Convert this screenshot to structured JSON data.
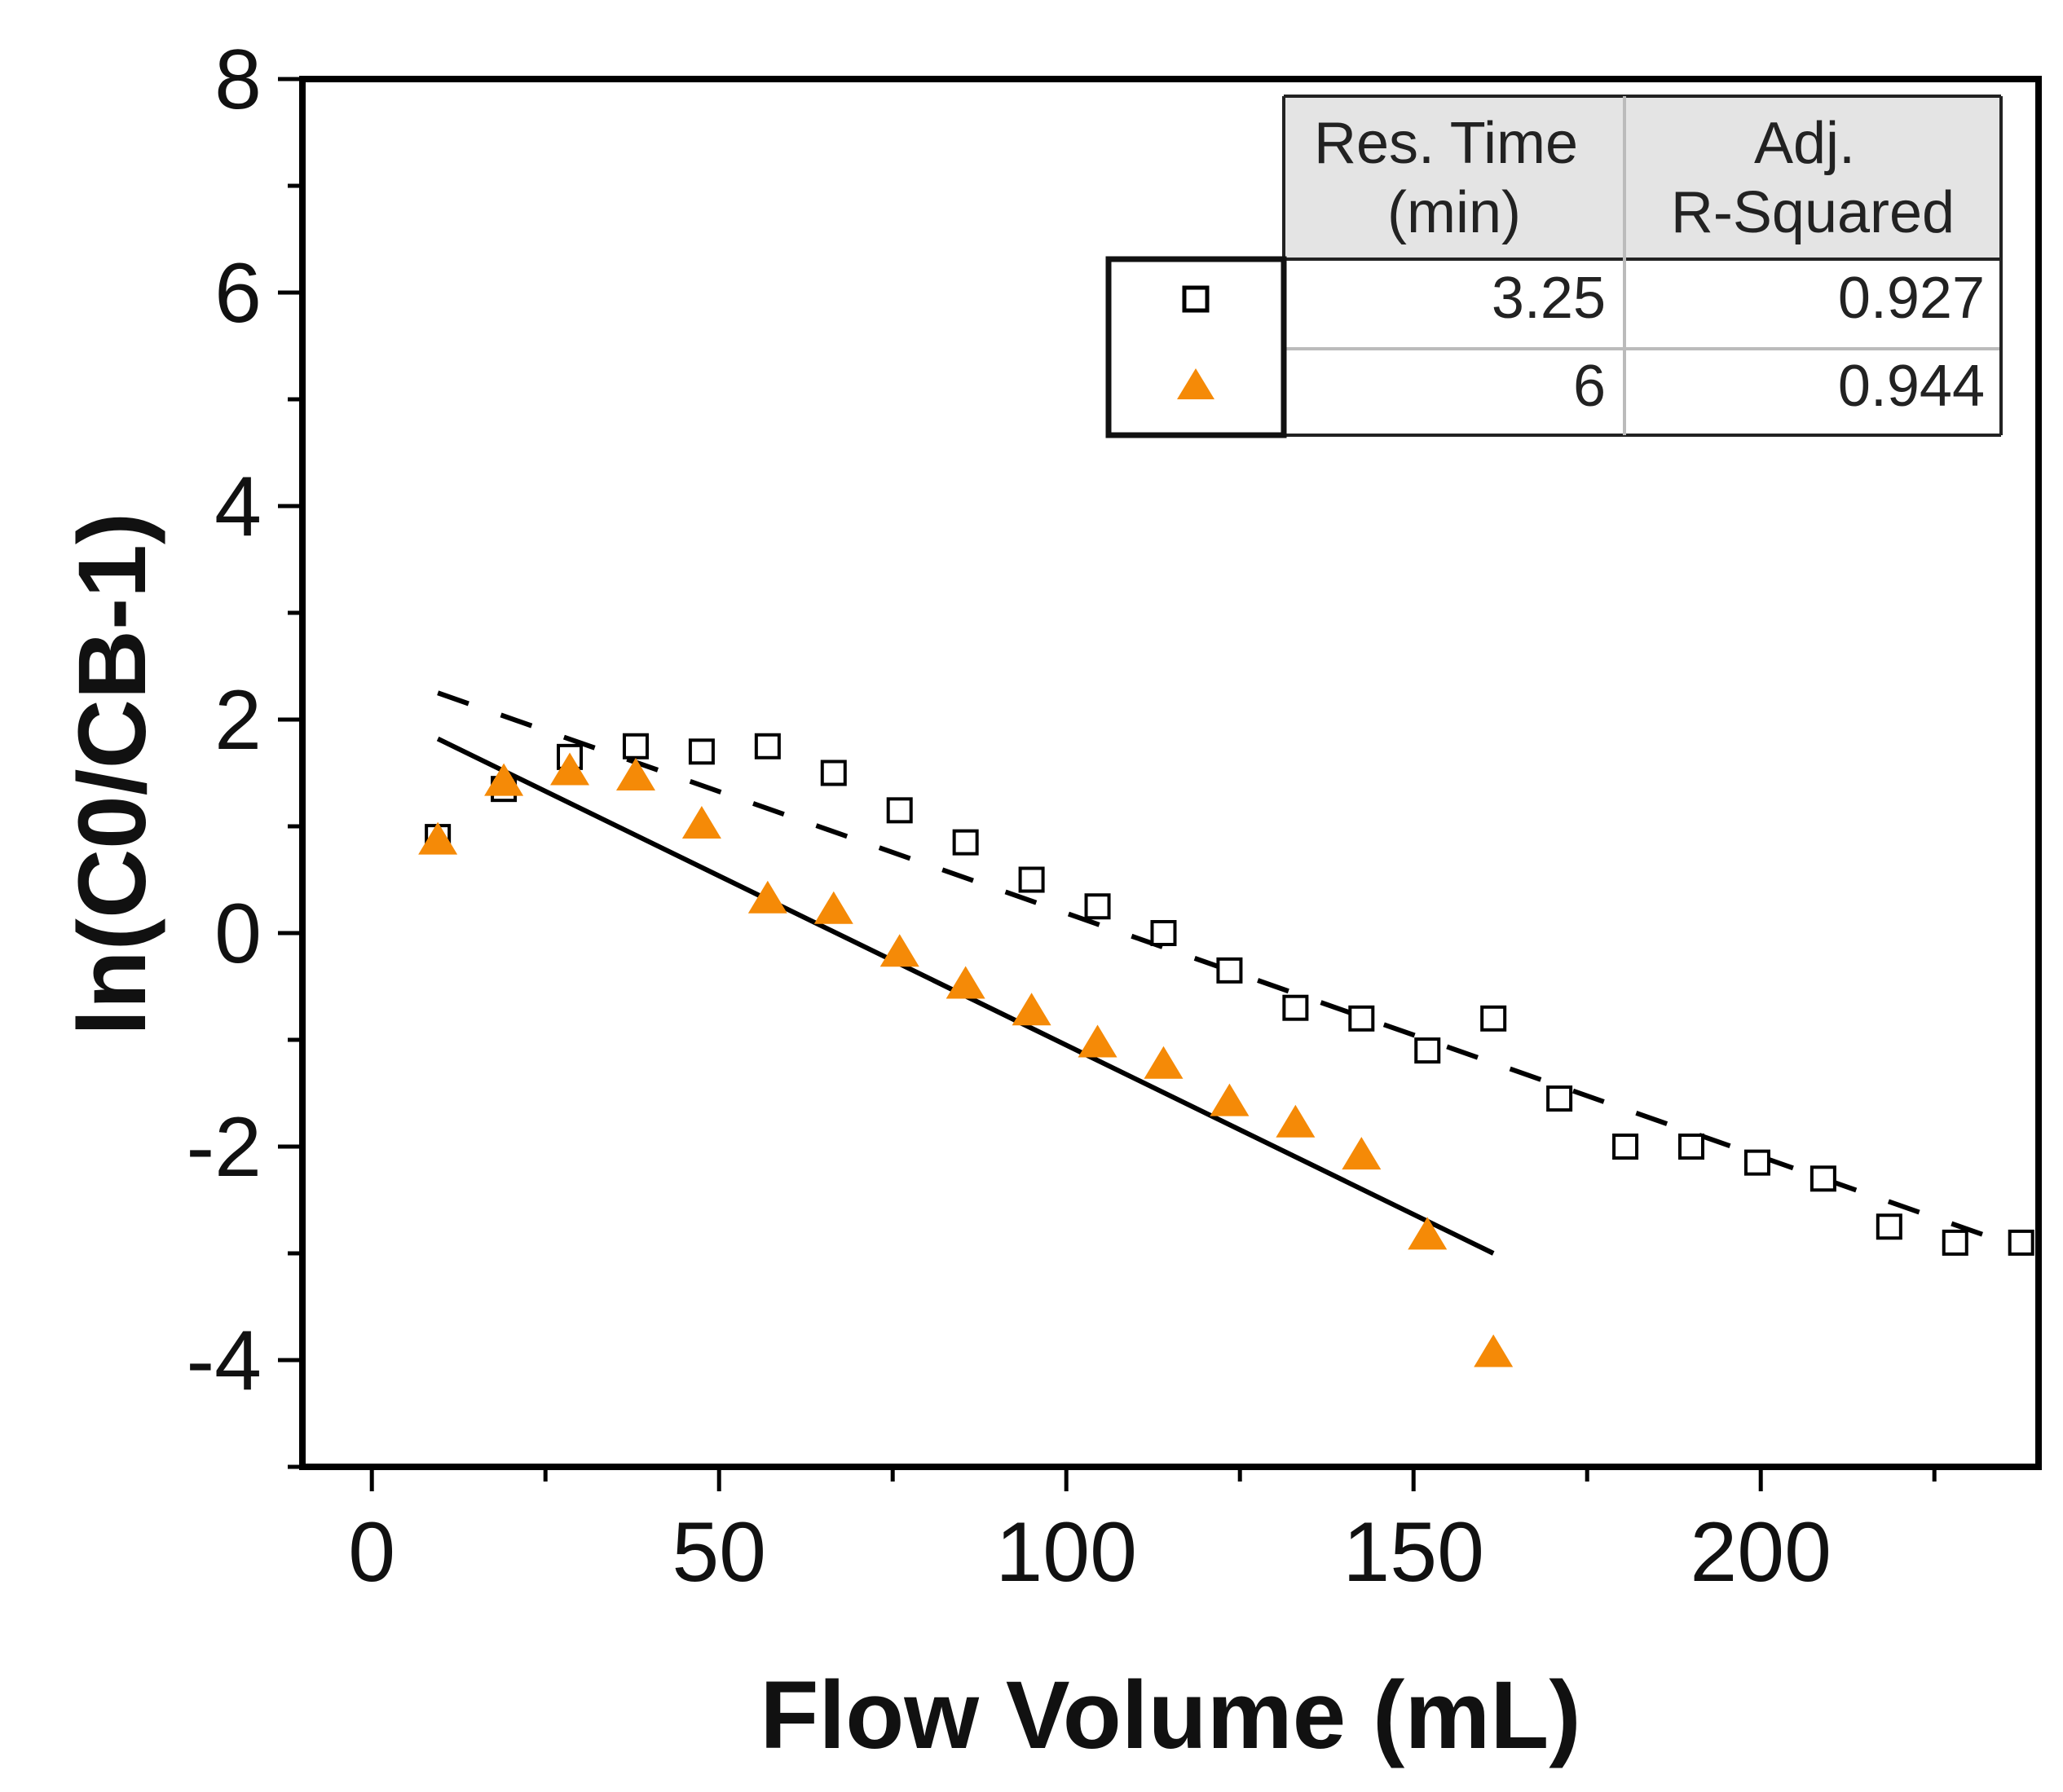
{
  "chart_data": {
    "type": "scatter",
    "xlabel": "Flow Volume (mL)",
    "ylabel": "ln(C0/CB-1)",
    "xlim": [
      -10,
      240
    ],
    "ylim": [
      -5,
      8
    ],
    "xticks": [
      0,
      50,
      100,
      150,
      200
    ],
    "xtick_labels": [
      "0",
      "50",
      "100",
      "150",
      "200"
    ],
    "yticks": [
      8,
      6,
      4,
      2,
      0,
      -2,
      -4
    ],
    "ytick_labels": [
      "8",
      "6",
      "4",
      "2",
      "0",
      "-2",
      "-4"
    ],
    "grid": false,
    "legend_table": {
      "header": [
        "Res. Time\n(min)",
        "Adj.\nR-Squared"
      ],
      "rows": [
        {
          "marker": "open-square",
          "res_time": "3.25",
          "adj_r2": "0.927"
        },
        {
          "marker": "filled-triangle",
          "res_time": "6",
          "adj_r2": "0.944"
        }
      ]
    },
    "series": [
      {
        "name": "3.25 min",
        "marker": "open-square",
        "color": "#000000",
        "x": [
          9.5,
          19,
          28.5,
          38,
          47.5,
          57,
          66.5,
          76,
          85.5,
          95,
          104.5,
          114,
          123.5,
          133,
          142.5,
          152,
          161.5,
          171,
          180.5,
          190,
          199.5,
          209,
          218.5,
          228,
          237.5
        ],
        "y": [
          0.9,
          1.35,
          1.65,
          1.75,
          1.7,
          1.75,
          1.5,
          1.15,
          0.85,
          0.5,
          0.25,
          0.0,
          -0.35,
          -0.7,
          -0.8,
          -1.1,
          -0.8,
          -1.55,
          -2.0,
          -2.0,
          -2.15,
          -2.3,
          -2.75,
          -2.9,
          -2.9
        ]
      },
      {
        "name": "6 min",
        "marker": "filled-triangle",
        "color": "#F58A07",
        "x": [
          9.5,
          19,
          28.5,
          38,
          47.5,
          57,
          66.5,
          76,
          85.5,
          95,
          104.5,
          114,
          123.5,
          133,
          142.5,
          152,
          161.5
        ],
        "y": [
          0.85,
          1.4,
          1.5,
          1.45,
          1.0,
          0.3,
          0.2,
          -0.2,
          -0.5,
          -0.75,
          -1.05,
          -1.25,
          -1.6,
          -1.8,
          -2.1,
          -2.85,
          -3.95
        ]
      }
    ],
    "fits": [
      {
        "series": "3.25 min",
        "style": "dashed",
        "x": [
          9.5,
          237.5
        ],
        "y": [
          2.25,
          -2.95
        ]
      },
      {
        "series": "6 min",
        "style": "solid",
        "x": [
          9.5,
          161.5
        ],
        "y": [
          1.82,
          -3.0
        ]
      }
    ]
  }
}
